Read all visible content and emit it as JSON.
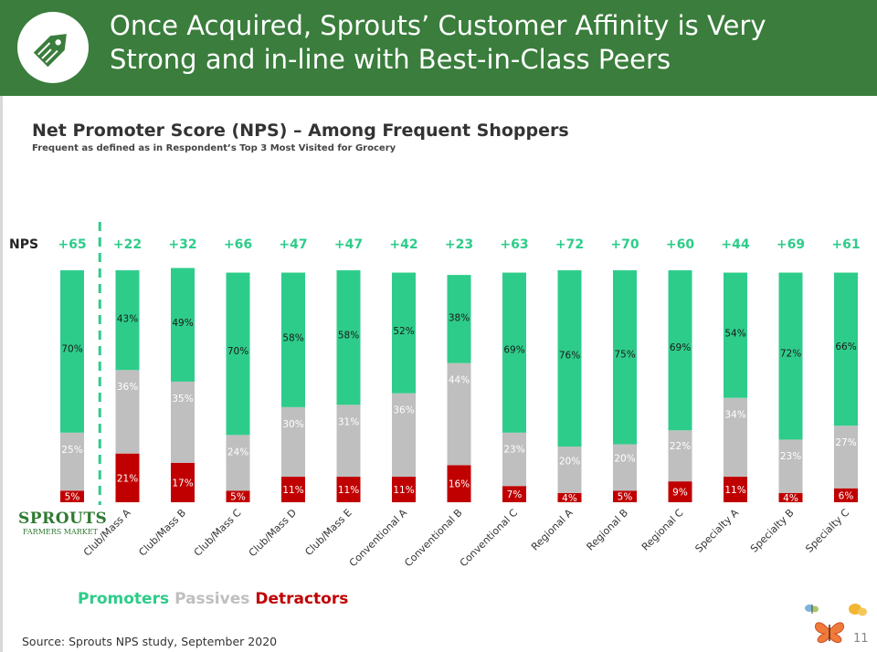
{
  "header": {
    "title_line1": "Once Acquired, Sprouts’ Customer Affinity is Very",
    "title_line2": "Strong and in-line with Best-in-Class Peers",
    "logo_icon": "price-tag-icon"
  },
  "brand": {
    "name": "SPROUTS",
    "sub": "FARMERS MARKET"
  },
  "chart_data": {
    "type": "bar",
    "stacked": true,
    "title": "Net Promoter Score (NPS) – Among Frequent Shoppers",
    "subtitle": "Frequent as defined as in Respondent’s Top 3 Most Visited for Grocery",
    "nps_label": "NPS",
    "categories": [
      "Sprouts",
      "Club/Mass A",
      "Club/Mass B",
      "Club/Mass C",
      "Club/Mass D",
      "Club/Mass E",
      "Conventional A",
      "Conventional B",
      "Conventional C",
      "Regional A",
      "Regional B",
      "Regional C",
      "Specialty A",
      "Specialty B",
      "Specialty C"
    ],
    "tick_labels": [
      "",
      "Club/Mass A",
      "Club/Mass B",
      "Club/Mass C",
      "Club/Mass D",
      "Club/Mass E",
      "Conventional A",
      "Conventional B",
      "Conventional C",
      "Regional A",
      "Regional B",
      "Regional C",
      "Specialty A",
      "Specialty B",
      "Specialty C"
    ],
    "nps": [
      "+65",
      "+22",
      "+32",
      "+66",
      "+47",
      "+47",
      "+42",
      "+23",
      "+63",
      "+72",
      "+70",
      "+60",
      "+44",
      "+69",
      "+61"
    ],
    "series": [
      {
        "name": "Detractors",
        "color": "#c00000",
        "values": [
          5,
          21,
          17,
          5,
          11,
          11,
          11,
          16,
          7,
          4,
          5,
          9,
          11,
          4,
          6
        ]
      },
      {
        "name": "Passives",
        "color": "#bfbfbf",
        "values": [
          25,
          36,
          35,
          24,
          30,
          31,
          36,
          44,
          23,
          20,
          20,
          22,
          34,
          23,
          27
        ]
      },
      {
        "name": "Promoters",
        "color": "#2ecc8a",
        "values": [
          70,
          43,
          49,
          70,
          58,
          58,
          52,
          38,
          69,
          76,
          75,
          69,
          54,
          72,
          66
        ]
      }
    ],
    "ylim": [
      0,
      100
    ],
    "divider_after": 0
  },
  "legend": {
    "promoters": "Promoters",
    "passives": "Passives",
    "detractors": "Detractors",
    "promoters_color": "#2ecc8a",
    "passives_color": "#bfbfbf",
    "detractors_color": "#c00000"
  },
  "footer": {
    "source": "Source: Sprouts NPS study, September 2020",
    "page_number": "11",
    "decoration_icon": "butterfly-icon"
  }
}
